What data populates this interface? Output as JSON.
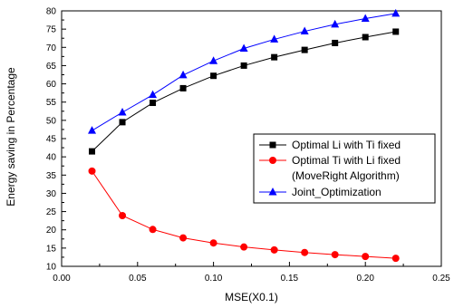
{
  "chart_data": {
    "type": "line",
    "xlabel": "MSE(X0.1)",
    "ylabel": "Energy saving in Percentage",
    "xlim": [
      0.0,
      0.25
    ],
    "ylim": [
      10,
      80
    ],
    "xticks": [
      "0.00",
      "0.05",
      "0.10",
      "0.15",
      "0.20",
      "0.25"
    ],
    "yticks": [
      "10",
      "15",
      "20",
      "25",
      "30",
      "35",
      "40",
      "45",
      "50",
      "55",
      "60",
      "65",
      "70",
      "75",
      "80"
    ],
    "grid": false,
    "legend_position": "center-right",
    "x": [
      0.02,
      0.04,
      0.06,
      0.08,
      0.1,
      0.12,
      0.14,
      0.16,
      0.18,
      0.2,
      0.22
    ],
    "series": [
      {
        "name": "Optimal Li with Ti fixed",
        "color": "#000000",
        "marker": "square",
        "values": [
          41.5,
          49.5,
          54.8,
          58.8,
          62.2,
          65.0,
          67.3,
          69.3,
          71.2,
          72.8,
          74.3
        ]
      },
      {
        "name": "Optimal Ti with Li fixed",
        "name_line2": "(MoveRight Algorithm)",
        "color": "#ff0000",
        "marker": "circle",
        "values": [
          36.1,
          23.9,
          20.1,
          17.8,
          16.4,
          15.3,
          14.5,
          13.8,
          13.2,
          12.7,
          12.2
        ]
      },
      {
        "name": "Joint_Optimization",
        "color": "#0000ff",
        "marker": "triangle",
        "values": [
          47.2,
          52.2,
          57.0,
          62.4,
          66.3,
          69.7,
          72.2,
          74.4,
          76.3,
          77.9,
          79.3
        ]
      }
    ]
  }
}
